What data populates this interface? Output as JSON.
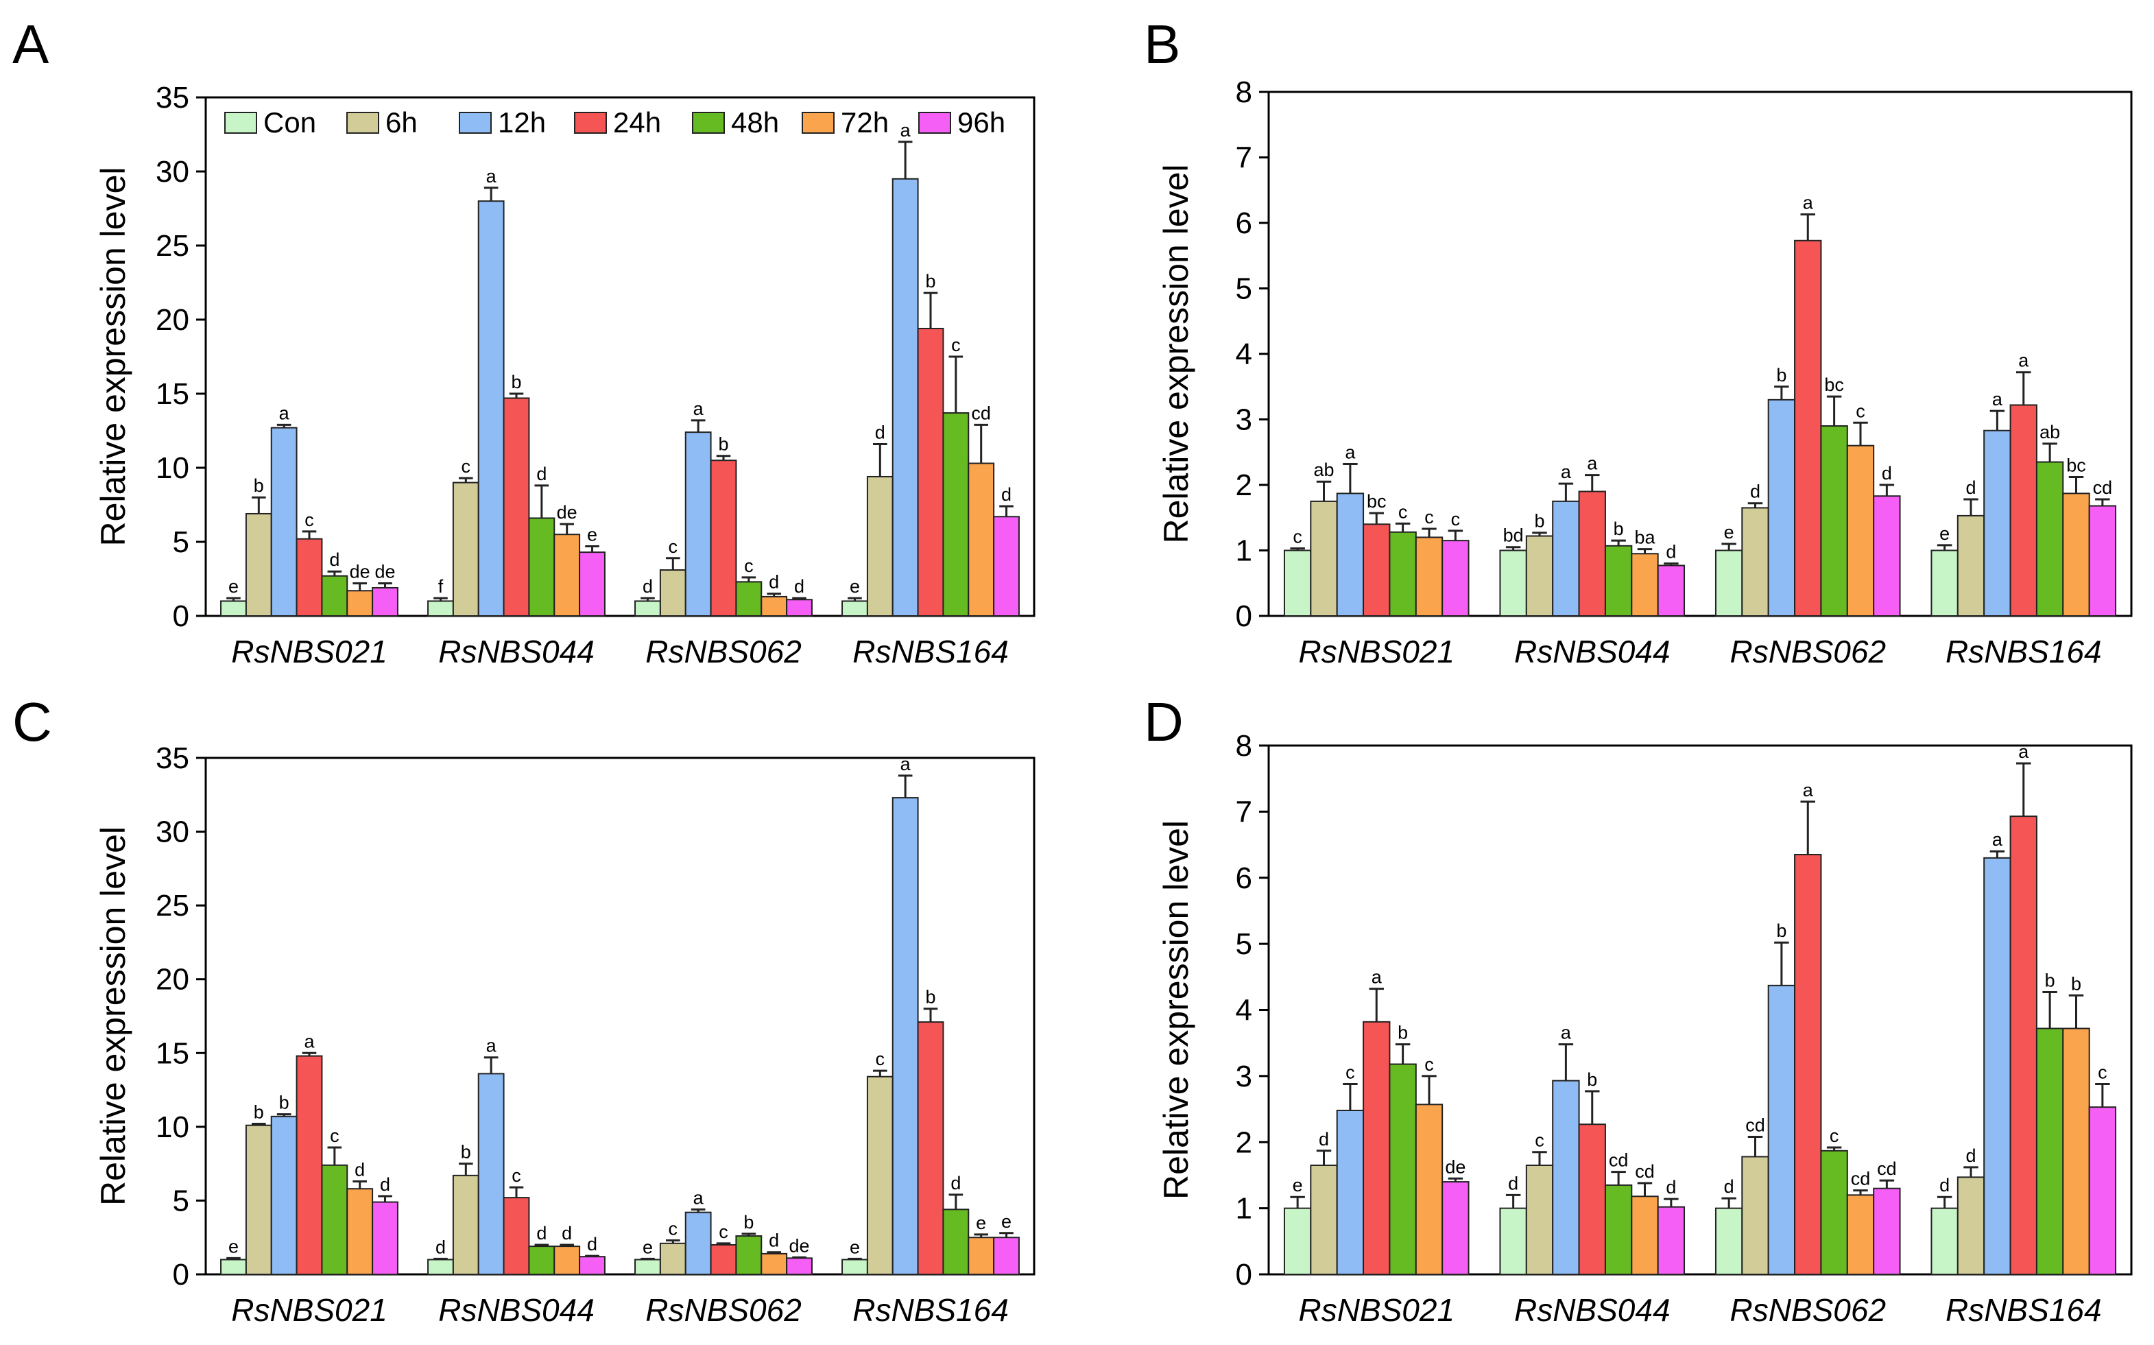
{
  "series_colors": {
    "Con": "#c8f5c8",
    "6h": "#d2cc99",
    "12h": "#8fbcf4",
    "24h": "#f65555",
    "48h": "#66bb22",
    "72h": "#fba44e",
    "96h": "#f55ff5"
  },
  "chart_data": [
    {
      "panel": "A",
      "type": "bar",
      "ylabel": "Relative expression level",
      "ylim": [
        0,
        35
      ],
      "yticks": [
        "0",
        "5",
        "10",
        "15",
        "20",
        "25",
        "30",
        "35"
      ],
      "legend_position": "top-left",
      "categories": [
        "RsNBS021",
        "RsNBS044",
        "RsNBS062",
        "RsNBS164"
      ],
      "series": [
        {
          "name": "Con",
          "values": [
            1.0,
            1.0,
            1.0,
            1.0
          ],
          "errors": [
            0.2,
            0.2,
            0.2,
            0.2
          ],
          "sig": [
            "e",
            "f",
            "d",
            "e"
          ]
        },
        {
          "name": "6h",
          "values": [
            6.9,
            9.0,
            3.1,
            9.4
          ],
          "errors": [
            1.1,
            0.3,
            0.8,
            2.2
          ],
          "sig": [
            "b",
            "c",
            "c",
            "d"
          ]
        },
        {
          "name": "12h",
          "values": [
            12.7,
            28.0,
            12.4,
            29.5
          ],
          "errors": [
            0.2,
            0.9,
            0.8,
            2.5
          ],
          "sig": [
            "a",
            "a",
            "a",
            "a"
          ]
        },
        {
          "name": "24h",
          "values": [
            5.2,
            14.7,
            10.5,
            19.4
          ],
          "errors": [
            0.5,
            0.3,
            0.3,
            2.4
          ],
          "sig": [
            "c",
            "b",
            "b",
            "b"
          ]
        },
        {
          "name": "48h",
          "values": [
            2.7,
            6.6,
            2.3,
            13.7
          ],
          "errors": [
            0.3,
            2.2,
            0.3,
            3.8
          ],
          "sig": [
            "d",
            "d",
            "c",
            "c"
          ]
        },
        {
          "name": "72h",
          "values": [
            1.7,
            5.5,
            1.3,
            10.3
          ],
          "errors": [
            0.5,
            0.7,
            0.2,
            2.6
          ],
          "sig": [
            "de",
            "de",
            "d",
            "cd"
          ]
        },
        {
          "name": "96h",
          "values": [
            1.9,
            4.3,
            1.1,
            6.7
          ],
          "errors": [
            0.3,
            0.4,
            0.1,
            0.7
          ],
          "sig": [
            "de",
            "e",
            "d",
            "d"
          ]
        }
      ]
    },
    {
      "panel": "B",
      "type": "bar",
      "ylabel": "Relative expression level",
      "ylim": [
        0,
        8
      ],
      "yticks": [
        "0",
        "1",
        "2",
        "3",
        "4",
        "5",
        "6",
        "7",
        "8"
      ],
      "categories": [
        "RsNBS021",
        "RsNBS044",
        "RsNBS062",
        "RsNBS164"
      ],
      "series": [
        {
          "name": "Con",
          "values": [
            1.0,
            1.0,
            1.0,
            1.0
          ],
          "errors": [
            0.03,
            0.05,
            0.1,
            0.08
          ],
          "sig": [
            "c",
            "bd",
            "e",
            "e"
          ]
        },
        {
          "name": "6h",
          "values": [
            1.75,
            1.22,
            1.65,
            1.53
          ],
          "errors": [
            0.3,
            0.05,
            0.07,
            0.25
          ],
          "sig": [
            "ab",
            "b",
            "d",
            "d"
          ]
        },
        {
          "name": "12h",
          "values": [
            1.87,
            1.75,
            3.3,
            2.83
          ],
          "errors": [
            0.45,
            0.27,
            0.2,
            0.3
          ],
          "sig": [
            "a",
            "a",
            "b",
            "a"
          ]
        },
        {
          "name": "24h",
          "values": [
            1.4,
            1.9,
            5.73,
            3.22
          ],
          "errors": [
            0.17,
            0.25,
            0.4,
            0.5
          ],
          "sig": [
            "bc",
            "a",
            "a",
            "a"
          ]
        },
        {
          "name": "48h",
          "values": [
            1.28,
            1.07,
            2.9,
            2.35
          ],
          "errors": [
            0.13,
            0.08,
            0.45,
            0.28
          ],
          "sig": [
            "c",
            "b",
            "bc",
            "ab"
          ]
        },
        {
          "name": "72h",
          "values": [
            1.2,
            0.95,
            2.6,
            1.87
          ],
          "errors": [
            0.13,
            0.07,
            0.35,
            0.25
          ],
          "sig": [
            "c",
            "ba",
            "c",
            "bc"
          ]
        },
        {
          "name": "96h",
          "values": [
            1.15,
            0.77,
            1.83,
            1.68
          ],
          "errors": [
            0.15,
            0.03,
            0.17,
            0.1
          ],
          "sig": [
            "c",
            "d",
            "d",
            "cd"
          ]
        }
      ]
    },
    {
      "panel": "C",
      "type": "bar",
      "ylabel": "Relative expression level",
      "ylim": [
        0,
        35
      ],
      "yticks": [
        "0",
        "5",
        "10",
        "15",
        "20",
        "25",
        "30",
        "35"
      ],
      "categories": [
        "RsNBS021",
        "RsNBS044",
        "RsNBS062",
        "RsNBS164"
      ],
      "series": [
        {
          "name": "Con",
          "values": [
            1.0,
            1.0,
            1.0,
            1.0
          ],
          "errors": [
            0.1,
            0.05,
            0.05,
            0.05
          ],
          "sig": [
            "e",
            "d",
            "e",
            "e"
          ]
        },
        {
          "name": "6h",
          "values": [
            10.1,
            6.7,
            2.1,
            13.4
          ],
          "errors": [
            0.1,
            0.8,
            0.2,
            0.4
          ],
          "sig": [
            "b",
            "b",
            "c",
            "c"
          ]
        },
        {
          "name": "12h",
          "values": [
            10.7,
            13.6,
            4.2,
            32.3
          ],
          "errors": [
            0.15,
            1.1,
            0.2,
            1.5
          ],
          "sig": [
            "b",
            "a",
            "a",
            "a"
          ]
        },
        {
          "name": "24h",
          "values": [
            14.8,
            5.2,
            2.0,
            17.1
          ],
          "errors": [
            0.2,
            0.7,
            0.1,
            0.9
          ],
          "sig": [
            "a",
            "c",
            "c",
            "b"
          ]
        },
        {
          "name": "48h",
          "values": [
            7.4,
            1.9,
            2.6,
            4.4
          ],
          "errors": [
            1.2,
            0.1,
            0.15,
            1.0
          ],
          "sig": [
            "c",
            "d",
            "b",
            "d"
          ]
        },
        {
          "name": "72h",
          "values": [
            5.8,
            1.9,
            1.4,
            2.5
          ],
          "errors": [
            0.5,
            0.1,
            0.1,
            0.2
          ],
          "sig": [
            "d",
            "d",
            "d",
            "e"
          ]
        },
        {
          "name": "96h",
          "values": [
            4.9,
            1.2,
            1.1,
            2.5
          ],
          "errors": [
            0.4,
            0.05,
            0.05,
            0.3
          ],
          "sig": [
            "d",
            "d",
            "de",
            "e"
          ]
        }
      ]
    },
    {
      "panel": "D",
      "type": "bar",
      "ylabel": "Relative expression level",
      "ylim": [
        0,
        8
      ],
      "yticks": [
        "0",
        "1",
        "2",
        "3",
        "4",
        "5",
        "6",
        "7",
        "8"
      ],
      "categories": [
        "RsNBS021",
        "RsNBS044",
        "RsNBS062",
        "RsNBS164"
      ],
      "series": [
        {
          "name": "Con",
          "values": [
            1.0,
            1.0,
            1.0,
            1.0
          ],
          "errors": [
            0.17,
            0.2,
            0.15,
            0.17
          ],
          "sig": [
            "e",
            "d",
            "d",
            "d"
          ]
        },
        {
          "name": "6h",
          "values": [
            1.65,
            1.65,
            1.78,
            1.47
          ],
          "errors": [
            0.22,
            0.2,
            0.3,
            0.15
          ],
          "sig": [
            "d",
            "c",
            "cd",
            "d"
          ]
        },
        {
          "name": "12h",
          "values": [
            2.48,
            2.93,
            4.37,
            6.3
          ],
          "errors": [
            0.4,
            0.55,
            0.65,
            0.1
          ],
          "sig": [
            "c",
            "a",
            "b",
            "a"
          ]
        },
        {
          "name": "24h",
          "values": [
            3.82,
            2.27,
            6.35,
            6.93
          ],
          "errors": [
            0.5,
            0.5,
            0.8,
            0.8
          ],
          "sig": [
            "a",
            "b",
            "a",
            "a"
          ]
        },
        {
          "name": "48h",
          "values": [
            3.18,
            1.35,
            1.87,
            3.72
          ],
          "errors": [
            0.3,
            0.2,
            0.05,
            0.55
          ],
          "sig": [
            "b",
            "cd",
            "c",
            "b"
          ]
        },
        {
          "name": "72h",
          "values": [
            2.57,
            1.18,
            1.2,
            3.72
          ],
          "errors": [
            0.43,
            0.2,
            0.07,
            0.5
          ],
          "sig": [
            "c",
            "cd",
            "cd",
            "b"
          ]
        },
        {
          "name": "96h",
          "values": [
            1.4,
            1.02,
            1.3,
            2.53
          ],
          "errors": [
            0.05,
            0.12,
            0.12,
            0.35
          ],
          "sig": [
            "de",
            "d",
            "cd",
            "c"
          ]
        }
      ]
    }
  ]
}
